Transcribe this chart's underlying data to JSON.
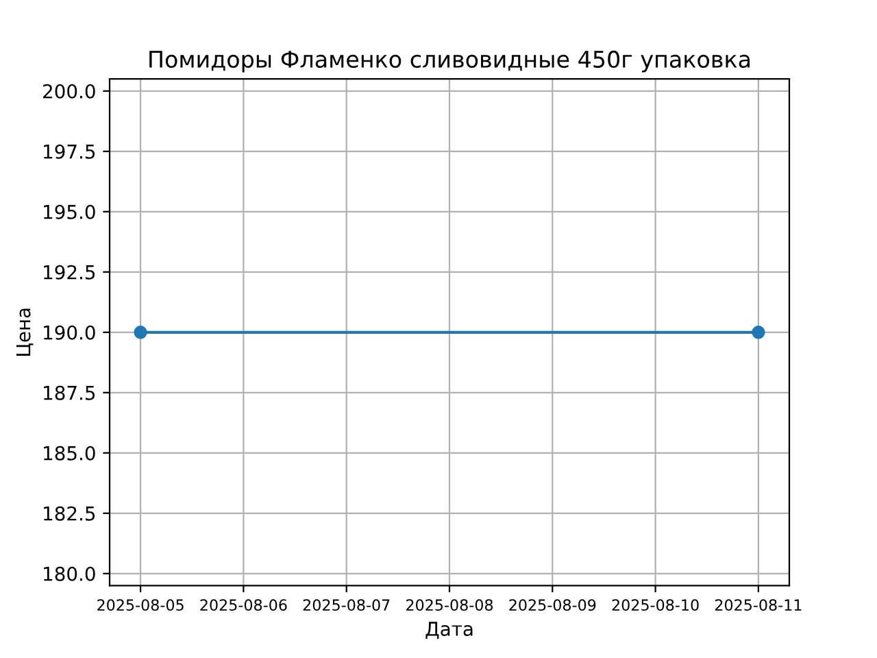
{
  "chart_data": {
    "type": "line",
    "title": "Помидоры Фламенко сливовидные 450г упаковка",
    "xlabel": "Дата",
    "ylabel": "Цена",
    "x": [
      "2025-08-05",
      "2025-08-11"
    ],
    "series": [
      {
        "color": "#1f77b4",
        "values": [
          190,
          190
        ]
      }
    ],
    "marker": "circle",
    "line_style": "solid",
    "grid": true,
    "xlim": [
      "2025-08-04T16:48",
      "2025-08-11T07:12"
    ],
    "xticks": [
      "2025-08-05",
      "2025-08-06",
      "2025-08-07",
      "2025-08-08",
      "2025-08-09",
      "2025-08-10",
      "2025-08-11"
    ],
    "ylim": [
      179.5,
      200.5
    ],
    "yticks": [
      {
        "value": 180,
        "label": "180.0"
      },
      {
        "value": 182.5,
        "label": "182.5"
      },
      {
        "value": 185,
        "label": "185.0"
      },
      {
        "value": 187.5,
        "label": "187.5"
      },
      {
        "value": 190,
        "label": "190.0"
      },
      {
        "value": 192.5,
        "label": "192.5"
      },
      {
        "value": 195,
        "label": "195.0"
      },
      {
        "value": 197.5,
        "label": "197.5"
      },
      {
        "value": 200,
        "label": "200.0"
      }
    ]
  }
}
